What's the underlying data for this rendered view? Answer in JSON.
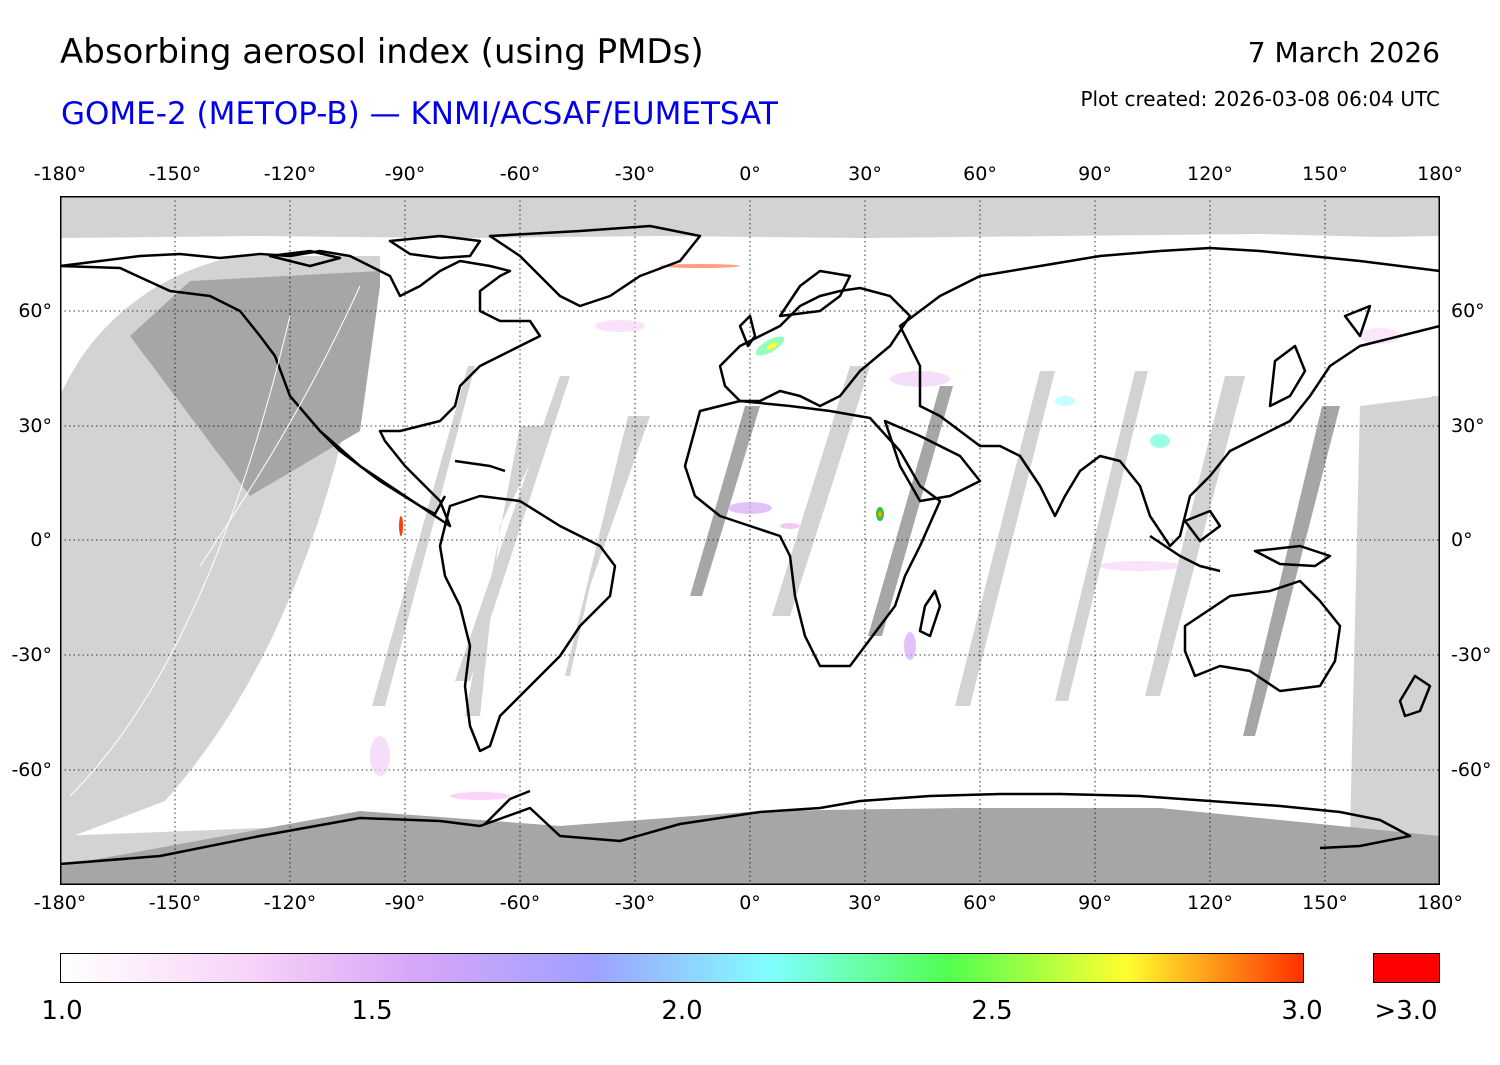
{
  "header": {
    "title": "Absorbing aerosol index (using PMDs)",
    "subtitle": "GOME-2 (METOP-B) — KNMI/ACSAF/EUMETSAT",
    "date": "7 March 2026",
    "created": "Plot created: 2026-03-08 06:04 UTC"
  },
  "colors": {
    "subtitle": "#0000ee",
    "no_data": "#d3d3d3",
    "night": "#a6a6a6",
    "coast": "#000000",
    "overflow": "#ff0000"
  },
  "map": {
    "lon_range": [
      -180,
      180
    ],
    "lat_range": [
      -90,
      90
    ],
    "x_ticks": [
      "-180°",
      "-150°",
      "-120°",
      "-90°",
      "-60°",
      "-30°",
      "0°",
      "30°",
      "60°",
      "90°",
      "120°",
      "150°",
      "180°"
    ],
    "y_ticks": [
      "60°",
      "30°",
      "0°",
      "-30°",
      "-60°"
    ]
  },
  "colorbar": {
    "min": 1.0,
    "max": 3.0,
    "labels": [
      "1.0",
      "1.5",
      "2.0",
      "2.5",
      "3.0"
    ],
    "overflow_label": ">3.0",
    "stops": [
      "#ffffff",
      "#f8d6f8",
      "#d6a6f8",
      "#a0a0ff",
      "#80ffff",
      "#50ff50",
      "#ffff30",
      "#ff3000"
    ]
  }
}
